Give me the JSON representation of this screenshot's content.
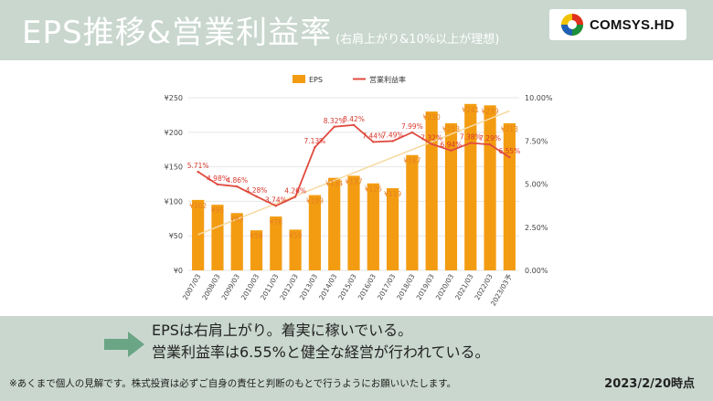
{
  "header": {
    "title": "EPS推移&営業利益率",
    "subtitle": "(右肩上がり&10%以上が理想)",
    "logo_text": "COMSYS.HD"
  },
  "chart_data": {
    "type": "bar",
    "categories": [
      "2007/03",
      "2008/03",
      "2009/03",
      "2010/03",
      "2011/03",
      "2012/03",
      "2013/03",
      "2014/03",
      "2015/03",
      "2016/03",
      "2017/03",
      "2018/03",
      "2019/03",
      "2020/03",
      "2021/03",
      "2022/03",
      "2023/03予"
    ],
    "series": [
      {
        "name": "EPS",
        "type": "bar",
        "axis": "left",
        "color": "#f39c12",
        "values": [
          102,
          95,
          83,
          58,
          78,
          59,
          109,
          134,
          137,
          126,
          119,
          167,
          230,
          213,
          241,
          239,
          213
        ],
        "labels": [
          "¥102",
          "¥95",
          "¥83",
          "¥58",
          "¥78",
          "¥59",
          "¥109",
          "¥134",
          "¥137",
          "¥126",
          "¥119",
          "¥167",
          "¥230",
          "¥213",
          "¥241",
          "¥239",
          "¥213"
        ]
      },
      {
        "name": "営業利益率",
        "type": "line",
        "axis": "right",
        "color": "#e04b3f",
        "values": [
          5.71,
          4.98,
          4.86,
          4.28,
          3.74,
          4.26,
          7.13,
          8.32,
          8.42,
          7.44,
          7.49,
          7.99,
          7.32,
          6.94,
          7.38,
          7.29,
          6.55
        ],
        "labels": [
          "5.71%",
          "4.98%",
          "4.86%",
          "4.28%",
          "3.74%",
          "4.26%",
          "7.13%",
          "8.32%",
          "8.42%",
          "7.44%",
          "7.49%",
          "7.99%",
          "7.32%",
          "6.94%",
          "7.38%",
          "7.29%",
          "6.55%"
        ]
      }
    ],
    "trendline": {
      "series": "EPS",
      "color": "#f7d9a0"
    },
    "y_left": {
      "min": 0,
      "max": 250,
      "ticks": [
        0,
        50,
        100,
        150,
        200,
        250
      ],
      "tick_labels": [
        "¥0",
        "¥50",
        "¥100",
        "¥150",
        "¥200",
        "¥250"
      ]
    },
    "y_right": {
      "min": 0,
      "max": 10,
      "ticks": [
        0,
        2.5,
        5,
        7.5,
        10
      ],
      "tick_labels": [
        "0.00%",
        "2.50%",
        "5.00%",
        "7.50%",
        "10.00%"
      ]
    },
    "grid": true,
    "legend_position": "top-center"
  },
  "comment": {
    "line1": "EPSは右肩上がり。着実に稼いでいる。",
    "line2": "営業利益率は6.55%と健全な経営が行われている。"
  },
  "footer": {
    "disclaimer": "※あくまで個人の見解です。株式投資は必ずご自身の責任と判断のもとで行うようにお願いいたします。",
    "as_of": "2023/2/20時点"
  }
}
